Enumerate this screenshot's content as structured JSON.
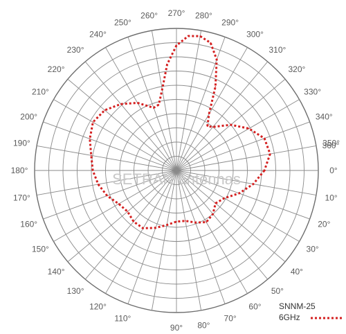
{
  "chart_data": {
    "type": "polar-line",
    "angle_direction": "clockwise",
    "zero_direction": "right",
    "angle_ticks": [
      "0°",
      "10°",
      "20°",
      "30°",
      "40°",
      "50°",
      "60°",
      "70°",
      "80°",
      "90°",
      "110°",
      "120°",
      "130°",
      "140°",
      "150°",
      "160°",
      "170°",
      "180°",
      "190°",
      "200°",
      "210°",
      "220°",
      "230°",
      "240°",
      "250°",
      "260°",
      "270°",
      "280°",
      "290°",
      "300°",
      "310°",
      "320°",
      "330°",
      "340°",
      "350°",
      "360°"
    ],
    "radial_rings": 10,
    "grid": true,
    "series": [
      {
        "name": "",
        "color": "#d42020",
        "style": "dotted",
        "points": [
          {
            "angle": 0,
            "r": 0.62
          },
          {
            "angle": 10,
            "r": 0.55
          },
          {
            "angle": 20,
            "r": 0.47
          },
          {
            "angle": 30,
            "r": 0.39
          },
          {
            "angle": 40,
            "r": 0.36
          },
          {
            "angle": 50,
            "r": 0.4
          },
          {
            "angle": 60,
            "r": 0.42
          },
          {
            "angle": 70,
            "r": 0.39
          },
          {
            "angle": 80,
            "r": 0.36
          },
          {
            "angle": 90,
            "r": 0.36
          },
          {
            "angle": 100,
            "r": 0.39
          },
          {
            "angle": 110,
            "r": 0.43
          },
          {
            "angle": 120,
            "r": 0.47
          },
          {
            "angle": 130,
            "r": 0.47
          },
          {
            "angle": 140,
            "r": 0.45
          },
          {
            "angle": 150,
            "r": 0.47
          },
          {
            "angle": 160,
            "r": 0.52
          },
          {
            "angle": 170,
            "r": 0.56
          },
          {
            "angle": 180,
            "r": 0.59
          },
          {
            "angle": 190,
            "r": 0.61
          },
          {
            "angle": 200,
            "r": 0.65
          },
          {
            "angle": 210,
            "r": 0.68
          },
          {
            "angle": 220,
            "r": 0.66
          },
          {
            "angle": 230,
            "r": 0.61
          },
          {
            "angle": 240,
            "r": 0.55
          },
          {
            "angle": 250,
            "r": 0.47
          },
          {
            "angle": 255,
            "r": 0.48
          },
          {
            "angle": 260,
            "r": 0.58
          },
          {
            "angle": 265,
            "r": 0.75
          },
          {
            "angle": 270,
            "r": 0.88
          },
          {
            "angle": 275,
            "r": 0.95
          },
          {
            "angle": 280,
            "r": 0.96
          },
          {
            "angle": 285,
            "r": 0.93
          },
          {
            "angle": 290,
            "r": 0.83
          },
          {
            "angle": 295,
            "r": 0.65
          },
          {
            "angle": 300,
            "r": 0.46
          },
          {
            "angle": 305,
            "r": 0.38
          },
          {
            "angle": 310,
            "r": 0.4
          },
          {
            "angle": 320,
            "r": 0.5
          },
          {
            "angle": 330,
            "r": 0.59
          },
          {
            "angle": 340,
            "r": 0.66
          },
          {
            "angle": 350,
            "r": 0.67
          },
          {
            "angle": 360,
            "r": 0.62
          }
        ]
      }
    ],
    "legend": {
      "line1": "SNNM-25",
      "line2": "6GHz",
      "placement": "bottom-right"
    },
    "watermark": "SETRAN antennas"
  }
}
